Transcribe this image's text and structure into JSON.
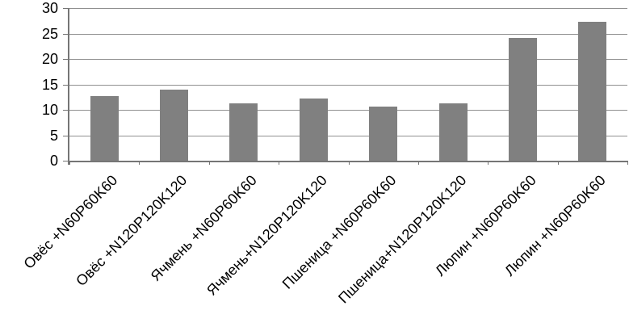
{
  "chart_data": {
    "type": "bar",
    "title": "",
    "xlabel": "",
    "ylabel": "",
    "categories": [
      "Овёс +N60P60K60",
      "Овёс +N120P120K120",
      "Ячмень +N60P60K60",
      "Ячмень+N120P120K120",
      "Пшеница +N60P60K60",
      "Пшеница+N120P120K120",
      "Люпин +N60P60K60",
      "Люпин +N60P60K60"
    ],
    "values": [
      12.7,
      14.0,
      11.3,
      12.3,
      10.7,
      11.3,
      24.2,
      27.3
    ],
    "ylim": [
      0,
      30
    ],
    "yticks": [
      0,
      5,
      10,
      15,
      20,
      25,
      30
    ],
    "grid": true,
    "legend": false,
    "x_labels_rotation_deg": -45,
    "colors": {
      "bar": "#808080",
      "gridline": "#909090",
      "axis": "#757575",
      "text": "#000000",
      "background": "#ffffff"
    }
  }
}
